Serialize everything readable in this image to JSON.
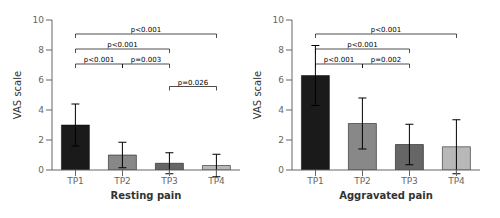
{
  "chart_data": [
    {
      "type": "bar",
      "xlabel": "Resting pain",
      "ylabel": "VAS scale",
      "categories": [
        "TP1",
        "TP2",
        "TP3",
        "TP4"
      ],
      "values": [
        3.0,
        1.0,
        0.45,
        0.3
      ],
      "errors": [
        1.4,
        0.85,
        0.7,
        0.75
      ],
      "colors": [
        "#1a1a1a",
        "#888888",
        "#666666",
        "#b8b8b8"
      ],
      "ylim": [
        0,
        10
      ],
      "yticks": [
        0,
        2,
        4,
        6,
        8,
        10
      ],
      "grid": false,
      "significance": [
        {
          "from": "TP1",
          "to": "TP2",
          "y": 6.8,
          "label": "p<0.001"
        },
        {
          "from": "TP1",
          "to": "TP3",
          "y": 7.8,
          "label": "p<0.001"
        },
        {
          "from": "TP1",
          "to": "TP4",
          "y": 8.8,
          "label": "p<0.001"
        },
        {
          "from": "TP2",
          "to": "TP3",
          "y": 6.8,
          "label": "p=0.003"
        },
        {
          "from": "TP3",
          "to": "TP4",
          "y": 5.3,
          "label": "p=0.026"
        }
      ]
    },
    {
      "type": "bar",
      "xlabel": "Aggravated pain",
      "ylabel": "VAS scale",
      "categories": [
        "TP1",
        "TP2",
        "TP3",
        "TP4"
      ],
      "values": [
        6.3,
        3.1,
        1.7,
        1.55
      ],
      "errors": [
        2.0,
        1.7,
        1.35,
        1.8
      ],
      "colors": [
        "#1a1a1a",
        "#888888",
        "#666666",
        "#b8b8b8"
      ],
      "ylim": [
        0,
        10
      ],
      "yticks": [
        0,
        2,
        4,
        6,
        8,
        10
      ],
      "grid": false,
      "significance": [
        {
          "from": "TP1",
          "to": "TP2",
          "y": 6.8,
          "label": "p<0.001"
        },
        {
          "from": "TP1",
          "to": "TP3",
          "y": 7.8,
          "label": "p<0.001"
        },
        {
          "from": "TP1",
          "to": "TP4",
          "y": 8.8,
          "label": "p<0.001"
        },
        {
          "from": "TP2",
          "to": "TP3",
          "y": 6.8,
          "label": "p=0.002"
        }
      ]
    }
  ]
}
